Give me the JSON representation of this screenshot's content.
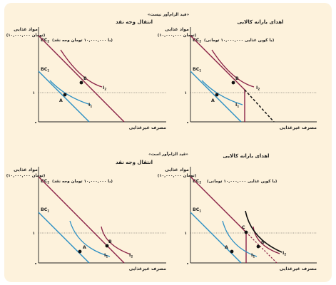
{
  "colors": {
    "background": "#fdf2dc",
    "bc_line": "#8b2347",
    "indifference": "#2b8fc4",
    "voucher_curve": "#111111",
    "voucher_kink": "#8b2347"
  },
  "sections": {
    "top_title": "«قید الزام‌آور نیست»",
    "bottom_title": "«قید الزام‌آور است»"
  },
  "panels": [
    {
      "title": "انتقال وجه نقد",
      "y_label": "مواد غذایی",
      "y_unit": "(۱۰,۰۰۰,۰۰۰ تومان)",
      "x_label": "مصرف غیرغذایی",
      "bc2_label": "BC",
      "bc2_sub": "2",
      "bc2_note": "(با ۱۰,۰۰۰,۰۰۰ تومان وجه نقد)",
      "bc1_label": "BC",
      "bc1_sub": "1",
      "point_a": "A",
      "point_b": "B",
      "i1_label": "I",
      "i1_sub": "1",
      "i2_label": "I",
      "i2_sub": "2",
      "y_tick": "۱",
      "origin": "•"
    },
    {
      "title": "اهدای یارانه کالایی",
      "y_label": "مواد غذایی",
      "y_unit": "(۱۰,۰۰۰,۰۰۰ تومان)",
      "x_label": "مصرف غیرغذایی",
      "bc2_label": "BC",
      "bc2_sub": "2",
      "bc2_note": "(با کوپن غذایی ۱۰,۰۰۰,۰۰۰ تومانی)",
      "bc1_label": "BC",
      "bc1_sub": "1",
      "point_a": "A",
      "point_b": "B",
      "i1_label": "I",
      "i1_sub": "1",
      "i2_label": "I",
      "i2_sub": "2",
      "y_tick": "۱",
      "origin": "•"
    },
    {
      "title": "انتقال وجه نقد",
      "y_label": "مواد غذایی",
      "y_unit": "(۱۰,۰۰۰,۰۰۰ تومان)",
      "x_label": "مصرف غیرغذایی",
      "bc2_label": "BC",
      "bc2_sub": "2",
      "bc2_note": "(با ۱۰,۰۰۰,۰۰۰ تومان وجه نقد)",
      "bc1_label": "BC",
      "bc1_sub": "1",
      "point_a": "A",
      "point_b": "B",
      "i1_label": "I",
      "i1_sub": "1",
      "i2_label": "I",
      "i2_sub": "2",
      "y_tick": "۱",
      "origin": "•"
    },
    {
      "title": "اهدای یارانه کالایی",
      "y_label": "مواد غذایی",
      "y_unit": "(۱۰,۰۰۰,۰۰۰ تومان)",
      "x_label": "مصرف غیرغذایی",
      "bc2_label": "BC",
      "bc2_sub": "2",
      "bc2_note": "(با کوپن غذایی ۱۰,۰۰۰,۰۰۰ تومانی)",
      "bc1_label": "BC",
      "bc1_sub": "1",
      "point_a": "A",
      "point_b": "B",
      "point_c": "C",
      "i1_label": "I",
      "i1_sub": "1",
      "i2_label": "I",
      "i2_sub": "2",
      "y_tick": "۱",
      "origin": "•"
    }
  ]
}
